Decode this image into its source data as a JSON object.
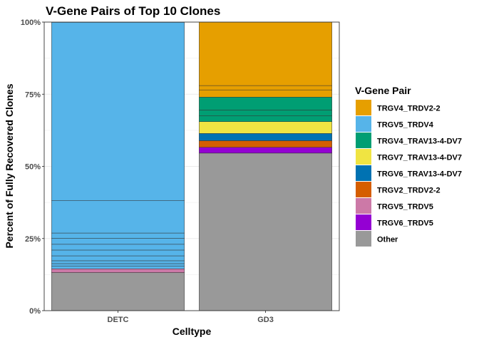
{
  "chart_data": {
    "type": "bar",
    "stacked": true,
    "title": "V-Gene Pairs of Top 10 Clones",
    "xlabel": "Celltype",
    "ylabel": "Percent of Fully Recovered Clones",
    "ylim": [
      0,
      100
    ],
    "yticks": [
      "0%",
      "25%",
      "50%",
      "75%",
      "100%"
    ],
    "ytick_values": [
      0,
      25,
      50,
      75,
      100
    ],
    "categories": [
      "DETC",
      "GD3"
    ],
    "grid": true,
    "legend_position": "right",
    "legend_title": "V-Gene Pair",
    "legend": [
      {
        "name": "TRGV4_TRDV2-2",
        "color": "#E69F00"
      },
      {
        "name": "TRGV5_TRDV4",
        "color": "#56B4E9"
      },
      {
        "name": "TRGV4_TRAV13-4-DV7",
        "color": "#009E73"
      },
      {
        "name": "TRGV7_TRAV13-4-DV7",
        "color": "#F0E442"
      },
      {
        "name": "TRGV6_TRAV13-4-DV7",
        "color": "#0072B2"
      },
      {
        "name": "TRGV2_TRDV2-2",
        "color": "#D55E00"
      },
      {
        "name": "TRGV5_TRDV5",
        "color": "#CC79A7"
      },
      {
        "name": "TRGV6_TRDV5",
        "color": "#9400D3"
      },
      {
        "name": "Other",
        "color": "#999999"
      }
    ],
    "stacks": [
      {
        "category": "DETC",
        "segments": [
          {
            "pair": "Other",
            "value": 13.2
          },
          {
            "pair": "TRGV5_TRDV5",
            "value": 1.3
          },
          {
            "pair": "TRGV5_TRDV4",
            "value": 0.9
          },
          {
            "pair": "TRGV5_TRDV4",
            "value": 0.9
          },
          {
            "pair": "TRGV5_TRDV4",
            "value": 1.0
          },
          {
            "pair": "TRGV5_TRDV4",
            "value": 1.7
          },
          {
            "pair": "TRGV5_TRDV4",
            "value": 2.0
          },
          {
            "pair": "TRGV5_TRDV4",
            "value": 2.0
          },
          {
            "pair": "TRGV5_TRDV4",
            "value": 2.1
          },
          {
            "pair": "TRGV5_TRDV4",
            "value": 1.8
          },
          {
            "pair": "TRGV5_TRDV4",
            "value": 11.3
          },
          {
            "pair": "TRGV5_TRDV4",
            "value": 61.7
          }
        ]
      },
      {
        "category": "GD3",
        "segments": [
          {
            "pair": "Other",
            "value": 54.6
          },
          {
            "pair": "TRGV6_TRDV5",
            "value": 2.0
          },
          {
            "pair": "TRGV2_TRDV2-2",
            "value": 2.3
          },
          {
            "pair": "TRGV6_TRAV13-4-DV7",
            "value": 2.5
          },
          {
            "pair": "TRGV7_TRAV13-4-DV7",
            "value": 4.1
          },
          {
            "pair": "TRGV4_TRAV13-4-DV7",
            "value": 2.0
          },
          {
            "pair": "TRGV4_TRAV13-4-DV7",
            "value": 2.0
          },
          {
            "pair": "TRGV4_TRAV13-4-DV7",
            "value": 4.5
          },
          {
            "pair": "TRGV4_TRDV2-2",
            "value": 2.5
          },
          {
            "pair": "TRGV4_TRDV2-2",
            "value": 1.5
          },
          {
            "pair": "TRGV4_TRDV2-2",
            "value": 22.0
          }
        ]
      }
    ]
  }
}
